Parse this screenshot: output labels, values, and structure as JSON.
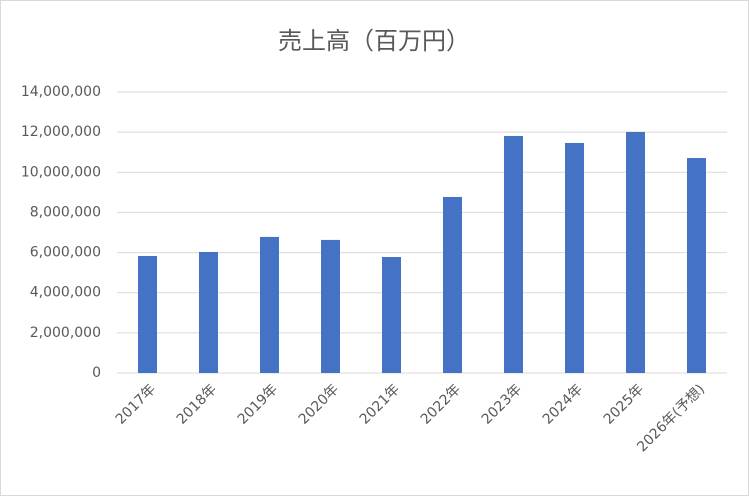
{
  "chart_data": {
    "type": "bar",
    "title": "売上高（百万円）",
    "categories": [
      "2017年",
      "2018年",
      "2019年",
      "2020年",
      "2021年",
      "2022年",
      "2023年",
      "2024年",
      "2025年",
      "2026年(予想)"
    ],
    "values": [
      5830000,
      6030000,
      6780000,
      6630000,
      5780000,
      8770000,
      11810000,
      11460000,
      12010000,
      10710000
    ],
    "color": "#4472c4",
    "ylim": [
      0,
      14000000
    ],
    "yticks": [
      0,
      {
        "value": 2000000,
        "label": "2,000,000"
      },
      {
        "value": 4000000,
        "label": "4,000,000"
      },
      {
        "value": 6000000,
        "label": "6,000,000"
      },
      {
        "value": 8000000,
        "label": "8,000,000"
      },
      {
        "value": 10000000,
        "label": "10,000,000"
      },
      {
        "value": 12000000,
        "label": "12,000,000"
      },
      {
        "value": 14000000,
        "label": "14,000,000"
      }
    ],
    "grid": true
  }
}
